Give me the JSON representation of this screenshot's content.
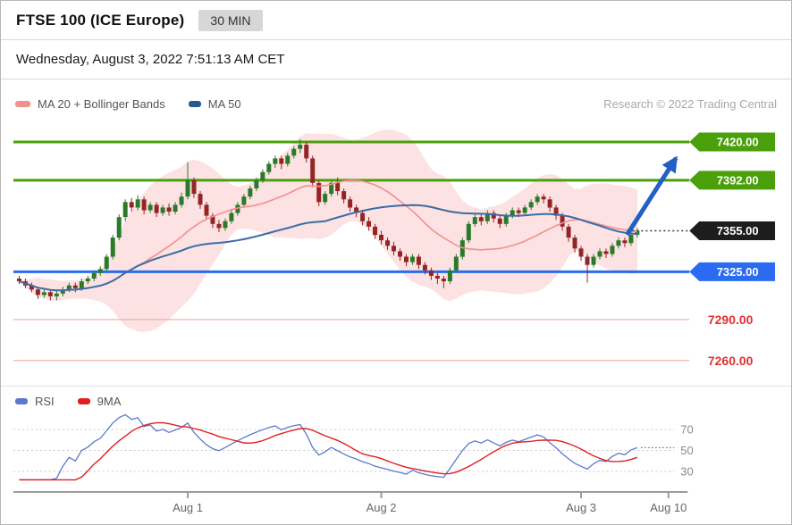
{
  "header": {
    "title": "FTSE 100 (ICE Europe)",
    "timeframe_badge": "30 MIN",
    "datetime": "Wednesday, August 3, 2022 7:51:13 AM CET"
  },
  "legend_main": {
    "items": [
      {
        "label": "MA 20 + Bollinger Bands",
        "color": "#f2908e"
      },
      {
        "label": "MA 50",
        "color": "#27598f"
      }
    ],
    "watermark": "Research © 2022 Trading Central"
  },
  "legend_rsi": {
    "items": [
      {
        "label": "RSI",
        "color": "#5b79d0"
      },
      {
        "label": "9MA",
        "color": "#e01f1f"
      }
    ]
  },
  "levels": [
    {
      "value": 7420,
      "label": "7420.00",
      "kind": "resistance",
      "style": "green-badge"
    },
    {
      "value": 7392,
      "label": "7392.00",
      "kind": "resistance",
      "style": "green-badge"
    },
    {
      "value": 7355,
      "label": "7355.00",
      "kind": "last-price",
      "style": "black-badge"
    },
    {
      "value": 7325,
      "label": "7325.00",
      "kind": "support",
      "style": "blue-badge"
    },
    {
      "value": 7290,
      "label": "7290.00",
      "kind": "downside",
      "style": "red-text"
    },
    {
      "value": 7260,
      "label": "7260.00",
      "kind": "downside",
      "style": "red-text"
    }
  ],
  "colors": {
    "green": "#4aa00a",
    "blue": "#2a6bf2",
    "black": "#1d1d1d",
    "red": "#e03030",
    "red_line": "#f0a2a2",
    "candle_up": "#2b7a2b",
    "candle_down": "#952525",
    "ma20": "#f2908e",
    "ma50": "#3a6ca6",
    "band_fill": "rgba(246,160,160,0.30)",
    "rsi": "#5b79d0",
    "rsi_ma": "#e01f1f",
    "arrow": "#2160c4",
    "grid_dotted": "#c8c8c8",
    "axis": "#9b9b9b",
    "axis_text": "#666666",
    "rsi_label": "#8a8a8a"
  },
  "chart_data": [
    {
      "type": "candlestick",
      "title": "FTSE 100 (ICE Europe)",
      "timeframe": "30 MIN",
      "ylim": [
        7245,
        7432
      ],
      "overlays": [
        "MA 20",
        "Bollinger Bands",
        "MA 50"
      ],
      "levels": {
        "resistance": [
          7420,
          7392
        ],
        "last_price": 7355,
        "support": [
          7325
        ],
        "downside": [
          7290,
          7260
        ]
      },
      "annotation_arrow": {
        "direction": "up",
        "from_price": 7355,
        "to_price": 7420
      },
      "x_ticks": [
        {
          "label": "Aug 1",
          "index": 27
        },
        {
          "label": "Aug 2",
          "index": 58
        },
        {
          "label": "Aug 3",
          "index": 90
        },
        {
          "label": "Aug 10",
          "index": 104
        }
      ],
      "ohlc": [
        [
          7320,
          7322,
          7316,
          7318
        ],
        [
          7318,
          7320,
          7313,
          7315
        ],
        [
          7315,
          7317,
          7310,
          7312
        ],
        [
          7312,
          7314,
          7305,
          7308
        ],
        [
          7308,
          7312,
          7306,
          7310
        ],
        [
          7310,
          7311,
          7304,
          7307
        ],
        [
          7307,
          7311,
          7304,
          7309
        ],
        [
          7309,
          7314,
          7307,
          7312
        ],
        [
          7312,
          7317,
          7310,
          7315
        ],
        [
          7315,
          7317,
          7310,
          7313
        ],
        [
          7313,
          7320,
          7311,
          7318
        ],
        [
          7318,
          7322,
          7316,
          7320
        ],
        [
          7320,
          7326,
          7318,
          7324
        ],
        [
          7324,
          7329,
          7322,
          7327
        ],
        [
          7327,
          7338,
          7325,
          7336
        ],
        [
          7336,
          7352,
          7334,
          7350
        ],
        [
          7350,
          7367,
          7348,
          7365
        ],
        [
          7365,
          7378,
          7362,
          7376
        ],
        [
          7376,
          7379,
          7369,
          7372
        ],
        [
          7372,
          7381,
          7370,
          7378
        ],
        [
          7378,
          7380,
          7367,
          7370
        ],
        [
          7370,
          7376,
          7368,
          7374
        ],
        [
          7374,
          7376,
          7365,
          7368
        ],
        [
          7368,
          7374,
          7366,
          7372
        ],
        [
          7372,
          7375,
          7366,
          7369
        ],
        [
          7369,
          7376,
          7367,
          7374
        ],
        [
          7374,
          7383,
          7372,
          7380
        ],
        [
          7380,
          7405,
          7378,
          7392
        ],
        [
          7392,
          7394,
          7379,
          7382
        ],
        [
          7382,
          7384,
          7371,
          7374
        ],
        [
          7374,
          7376,
          7363,
          7366
        ],
        [
          7366,
          7368,
          7357,
          7360
        ],
        [
          7360,
          7363,
          7354,
          7357
        ],
        [
          7357,
          7364,
          7355,
          7362
        ],
        [
          7362,
          7370,
          7360,
          7368
        ],
        [
          7368,
          7376,
          7366,
          7374
        ],
        [
          7374,
          7382,
          7372,
          7380
        ],
        [
          7380,
          7388,
          7378,
          7386
        ],
        [
          7386,
          7394,
          7384,
          7392
        ],
        [
          7392,
          7400,
          7390,
          7398
        ],
        [
          7398,
          7406,
          7396,
          7404
        ],
        [
          7404,
          7410,
          7401,
          7408
        ],
        [
          7408,
          7410,
          7400,
          7404
        ],
        [
          7404,
          7412,
          7402,
          7410
        ],
        [
          7410,
          7417,
          7408,
          7415
        ],
        [
          7415,
          7422,
          7412,
          7418
        ],
        [
          7418,
          7420,
          7405,
          7408
        ],
        [
          7408,
          7410,
          7387,
          7390
        ],
        [
          7390,
          7392,
          7373,
          7376
        ],
        [
          7376,
          7384,
          7374,
          7382
        ],
        [
          7382,
          7392,
          7380,
          7390
        ],
        [
          7390,
          7394,
          7381,
          7384
        ],
        [
          7384,
          7386,
          7375,
          7378
        ],
        [
          7378,
          7380,
          7369,
          7372
        ],
        [
          7372,
          7374,
          7365,
          7368
        ],
        [
          7368,
          7370,
          7359,
          7362
        ],
        [
          7362,
          7365,
          7355,
          7358
        ],
        [
          7358,
          7360,
          7349,
          7352
        ],
        [
          7352,
          7355,
          7345,
          7348
        ],
        [
          7348,
          7350,
          7341,
          7344
        ],
        [
          7344,
          7347,
          7337,
          7340
        ],
        [
          7340,
          7342,
          7333,
          7336
        ],
        [
          7336,
          7338,
          7329,
          7332
        ],
        [
          7332,
          7338,
          7330,
          7336
        ],
        [
          7336,
          7338,
          7327,
          7330
        ],
        [
          7330,
          7332,
          7323,
          7326
        ],
        [
          7326,
          7328,
          7319,
          7322
        ],
        [
          7322,
          7324,
          7316,
          7320
        ],
        [
          7320,
          7322,
          7313,
          7318
        ],
        [
          7318,
          7328,
          7316,
          7326
        ],
        [
          7326,
          7338,
          7324,
          7336
        ],
        [
          7336,
          7350,
          7334,
          7348
        ],
        [
          7348,
          7362,
          7346,
          7360
        ],
        [
          7360,
          7367,
          7358,
          7365
        ],
        [
          7365,
          7367,
          7359,
          7362
        ],
        [
          7362,
          7370,
          7360,
          7368
        ],
        [
          7368,
          7370,
          7361,
          7364
        ],
        [
          7364,
          7366,
          7357,
          7360
        ],
        [
          7360,
          7368,
          7358,
          7366
        ],
        [
          7366,
          7372,
          7364,
          7370
        ],
        [
          7370,
          7372,
          7365,
          7368
        ],
        [
          7368,
          7374,
          7366,
          7372
        ],
        [
          7372,
          7378,
          7370,
          7376
        ],
        [
          7376,
          7382,
          7374,
          7380
        ],
        [
          7380,
          7382,
          7375,
          7378
        ],
        [
          7378,
          7380,
          7369,
          7372
        ],
        [
          7372,
          7374,
          7363,
          7366
        ],
        [
          7366,
          7368,
          7355,
          7358
        ],
        [
          7358,
          7360,
          7347,
          7350
        ],
        [
          7350,
          7352,
          7339,
          7342
        ],
        [
          7342,
          7344,
          7333,
          7336
        ],
        [
          7336,
          7338,
          7317,
          7330
        ],
        [
          7330,
          7338,
          7328,
          7336
        ],
        [
          7336,
          7342,
          7334,
          7340
        ],
        [
          7340,
          7342,
          7335,
          7338
        ],
        [
          7338,
          7346,
          7336,
          7344
        ],
        [
          7344,
          7350,
          7342,
          7348
        ],
        [
          7348,
          7350,
          7343,
          7346
        ],
        [
          7346,
          7354,
          7344,
          7352
        ],
        [
          7352,
          7357,
          7350,
          7355
        ]
      ]
    },
    {
      "type": "line",
      "title": "RSI",
      "series": [
        {
          "name": "RSI",
          "period": 14
        },
        {
          "name": "9MA",
          "period": 9
        }
      ],
      "yticks": [
        70,
        50,
        30
      ],
      "ylim": [
        15,
        90
      ]
    }
  ]
}
